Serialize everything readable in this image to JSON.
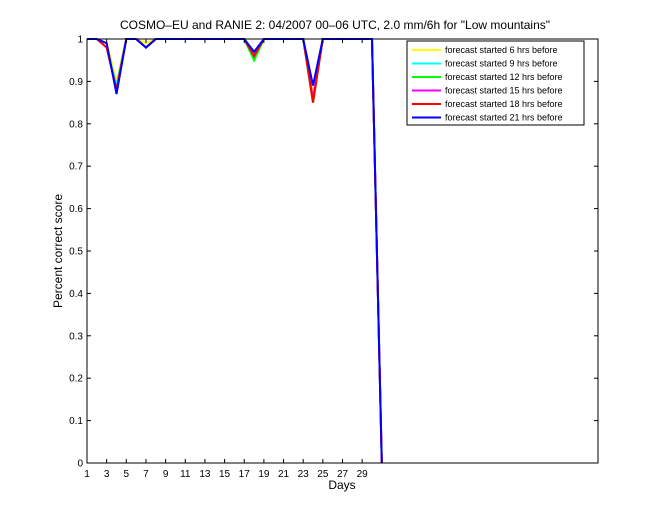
{
  "chart_data": {
    "type": "line",
    "title": "COSMO–EU and RANIE 2: 04/2007 00–06 UTC, 2.0 mm/6h for \"Low mountains\"",
    "xlabel": "Days",
    "ylabel": "Percent correct score",
    "xlim": [
      1,
      53
    ],
    "ylim": [
      0,
      1
    ],
    "x_ticks": [
      1,
      3,
      5,
      7,
      9,
      11,
      13,
      15,
      17,
      19,
      21,
      23,
      25,
      27,
      29
    ],
    "y_ticks": [
      0,
      0.1,
      0.2,
      0.3,
      0.4,
      0.5,
      0.6,
      0.7,
      0.8,
      0.9,
      1
    ],
    "y_tick_labels": [
      "0",
      "0.1",
      "0.2",
      "0.3",
      "0.4",
      "0.5",
      "0.6",
      "0.7",
      "0.8",
      "0.9",
      "1"
    ],
    "grid": false,
    "legend_position": "top-right",
    "x": [
      1,
      2,
      3,
      4,
      5,
      6,
      7,
      8,
      9,
      10,
      11,
      12,
      13,
      14,
      15,
      16,
      17,
      18,
      19,
      20,
      21,
      22,
      23,
      24,
      25,
      26,
      27,
      28,
      29,
      30,
      31
    ],
    "series": [
      {
        "name": "forecast started 6 hrs before",
        "color": "#ffff00",
        "values": [
          1,
          1,
          0.99,
          0.9,
          1,
          1,
          0.99,
          1,
          1,
          1,
          1,
          1,
          1,
          1,
          1,
          1,
          1,
          0.96,
          1,
          1,
          1,
          1,
          1,
          0.87,
          1,
          1,
          1,
          1,
          1,
          1,
          0
        ]
      },
      {
        "name": "forecast started 9 hrs before",
        "color": "#00ffff",
        "values": [
          1,
          1,
          0.98,
          0.89,
          1,
          1,
          0.98,
          1,
          1,
          1,
          1,
          1,
          1,
          1,
          1,
          1,
          1,
          0.95,
          1,
          1,
          1,
          1,
          1,
          0.85,
          1,
          1,
          1,
          1,
          1,
          1,
          0
        ]
      },
      {
        "name": "forecast started 12 hrs before",
        "color": "#00ff00",
        "values": [
          1,
          1,
          0.98,
          0.88,
          1,
          1,
          0.98,
          1,
          1,
          1,
          1,
          1,
          1,
          1,
          1,
          1,
          1,
          0.95,
          1,
          1,
          1,
          1,
          1,
          0.85,
          1,
          1,
          1,
          1,
          1,
          1,
          0
        ]
      },
      {
        "name": "forecast started 15 hrs before",
        "color": "#ff00ff",
        "values": [
          1,
          1,
          0.98,
          0.88,
          1,
          1,
          0.98,
          1,
          1,
          1,
          1,
          1,
          1,
          1,
          1,
          1,
          1,
          0.96,
          1,
          1,
          1,
          1,
          1,
          0.86,
          1,
          1,
          1,
          1,
          1,
          1,
          0
        ]
      },
      {
        "name": "forecast started 18 hrs before",
        "color": "#ff0000",
        "values": [
          1,
          1,
          0.98,
          0.88,
          1,
          1,
          0.98,
          1,
          1,
          1,
          1,
          1,
          1,
          1,
          1,
          1,
          1,
          0.96,
          1,
          1,
          1,
          1,
          1,
          0.85,
          1,
          1,
          1,
          1,
          1,
          1,
          0
        ]
      },
      {
        "name": "forecast started 21 hrs before",
        "color": "#0000ff",
        "values": [
          1,
          1,
          0.99,
          0.87,
          1,
          1,
          0.98,
          1,
          1,
          1,
          1,
          1,
          1,
          1,
          1,
          1,
          1,
          0.97,
          1,
          1,
          1,
          1,
          1,
          0.89,
          1,
          1,
          1,
          1,
          1,
          1,
          0
        ]
      }
    ]
  }
}
